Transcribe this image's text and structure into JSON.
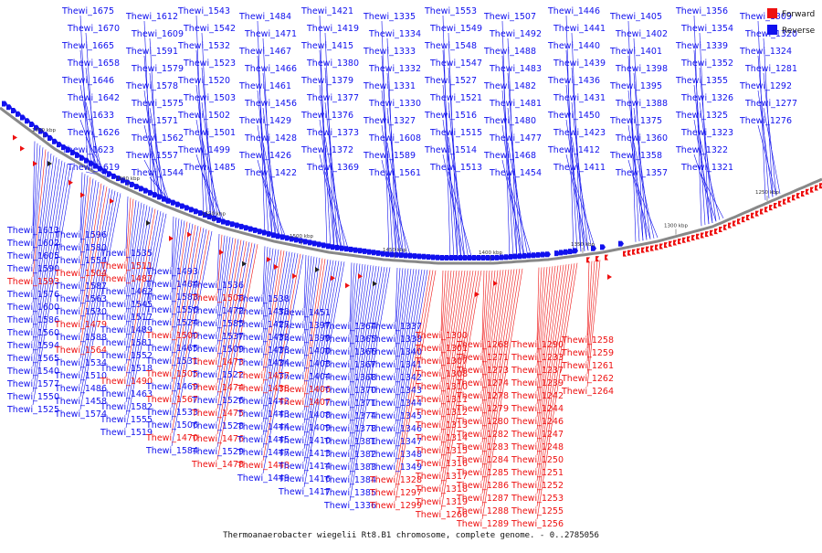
{
  "caption": "Thermoanaerobacter wiegelii Rt8.B1 chromosome, complete genome. - 0..2785056",
  "legend": {
    "items": [
      {
        "label": "Forward",
        "color": "#ee1111"
      },
      {
        "label": "Reverse",
        "color": "#1111ee"
      }
    ]
  },
  "colors": {
    "forward": "#ee1111",
    "reverse": "#1111ee",
    "backbone": "#888888"
  },
  "scale": {
    "unit": "kbp",
    "ticks": [
      1650,
      1600,
      1550,
      1500,
      1450,
      1400,
      1350,
      1300,
      1250
    ]
  },
  "outer_labels": [
    "Thewi_1675",
    "Thewi_1670",
    "Thewi_1665",
    "Thewi_1658",
    "Thewi_1646",
    "Thewi_1642",
    "Thewi_1633",
    "Thewi_1626",
    "Thewi_1623",
    "Thewi_1619",
    "Thewi_1612",
    "Thewi_1609",
    "Thewi_1591",
    "Thewi_1579",
    "Thewi_1578",
    "Thewi_1575",
    "Thewi_1571",
    "Thewi_1562",
    "Thewi_1557",
    "Thewi_1544",
    "Thewi_1543",
    "Thewi_1542",
    "Thewi_1532",
    "Thewi_1523",
    "Thewi_1520",
    "Thewi_1503",
    "Thewi_1502",
    "Thewi_1501",
    "Thewi_1499",
    "Thewi_1485",
    "Thewi_1484",
    "Thewi_1471",
    "Thewi_1467",
    "Thewi_1466",
    "Thewi_1461",
    "Thewi_1456",
    "Thewi_1429",
    "Thewi_1428",
    "Thewi_1426",
    "Thewi_1422",
    "Thewi_1421",
    "Thewi_1419",
    "Thewi_1415",
    "Thewi_1380",
    "Thewi_1379",
    "Thewi_1377",
    "Thewi_1376",
    "Thewi_1373",
    "Thewi_1372",
    "Thewi_1369",
    "Thewi_1335",
    "Thewi_1334",
    "Thewi_1333",
    "Thewi_1332",
    "Thewi_1331",
    "Thewi_1330",
    "Thewi_1327",
    "Thewi_1608",
    "Thewi_1589",
    "Thewi_1561",
    "Thewi_1553",
    "Thewi_1549",
    "Thewi_1548",
    "Thewi_1547",
    "Thewi_1527",
    "Thewi_1521",
    "Thewi_1516",
    "Thewi_1515",
    "Thewi_1514",
    "Thewi_1513",
    "Thewi_1507",
    "Thewi_1492",
    "Thewi_1488",
    "Thewi_1483",
    "Thewi_1482",
    "Thewi_1481",
    "Thewi_1480",
    "Thewi_1477",
    "Thewi_1468",
    "Thewi_1454",
    "Thewi_1446",
    "Thewi_1441",
    "Thewi_1440",
    "Thewi_1439",
    "Thewi_1436",
    "Thewi_1431",
    "Thewi_1450",
    "Thewi_1423",
    "Thewi_1412",
    "Thewi_1411",
    "Thewi_1405",
    "Thewi_1402",
    "Thewi_1401",
    "Thewi_1398",
    "Thewi_1395",
    "Thewi_1388",
    "Thewi_1375",
    "Thewi_1360",
    "Thewi_1358",
    "Thewi_1357",
    "Thewi_1356",
    "Thewi_1354",
    "Thewi_1339",
    "Thewi_1352",
    "Thewi_1355",
    "Thewi_1326",
    "Thewi_1325",
    "Thewi_1323",
    "Thewi_1322",
    "Thewi_1321",
    "Thewi_1309",
    "Thewi_1320",
    "Thewi_1324",
    "Thewi_1281",
    "Thewi_1292",
    "Thewi_1277",
    "Thewi_1276"
  ],
  "inner_labels": [
    {
      "name": "Thewi_1613",
      "strand": "reverse"
    },
    {
      "name": "Thewi_1602",
      "strand": "reverse"
    },
    {
      "name": "Thewi_1605",
      "strand": "reverse"
    },
    {
      "name": "Thewi_1590",
      "strand": "reverse"
    },
    {
      "name": "Thewi_1593",
      "strand": "forward"
    },
    {
      "name": "Thewi_1576",
      "strand": "reverse"
    },
    {
      "name": "Thewi_1600",
      "strand": "reverse"
    },
    {
      "name": "Thewi_1586",
      "strand": "reverse"
    },
    {
      "name": "Thewi_1560",
      "strand": "reverse"
    },
    {
      "name": "Thewi_1594",
      "strand": "reverse"
    },
    {
      "name": "Thewi_1565",
      "strand": "reverse"
    },
    {
      "name": "Thewi_1540",
      "strand": "reverse"
    },
    {
      "name": "Thewi_1577",
      "strand": "reverse"
    },
    {
      "name": "Thewi_1550",
      "strand": "reverse"
    },
    {
      "name": "Thewi_1525",
      "strand": "reverse"
    },
    {
      "name": "Thewi_1596",
      "strand": "reverse"
    },
    {
      "name": "Thewi_1580",
      "strand": "reverse"
    },
    {
      "name": "Thewi_1554",
      "strand": "reverse"
    },
    {
      "name": "Thewi_1504",
      "strand": "forward"
    },
    {
      "name": "Thewi_1587",
      "strand": "reverse"
    },
    {
      "name": "Thewi_1563",
      "strand": "reverse"
    },
    {
      "name": "Thewi_1530",
      "strand": "reverse"
    },
    {
      "name": "Thewi_1479",
      "strand": "forward"
    },
    {
      "name": "Thewi_1588",
      "strand": "reverse"
    },
    {
      "name": "Thewi_1564",
      "strand": "forward"
    },
    {
      "name": "Thewi_1534",
      "strand": "reverse"
    },
    {
      "name": "Thewi_1510",
      "strand": "reverse"
    },
    {
      "name": "Thewi_1486",
      "strand": "reverse"
    },
    {
      "name": "Thewi_1458",
      "strand": "reverse"
    },
    {
      "name": "Thewi_1574",
      "strand": "reverse"
    },
    {
      "name": "Thewi_1535",
      "strand": "reverse"
    },
    {
      "name": "Thewi_1511",
      "strand": "forward"
    },
    {
      "name": "Thewi_1487",
      "strand": "forward"
    },
    {
      "name": "Thewi_1462",
      "strand": "reverse"
    },
    {
      "name": "Thewi_1545",
      "strand": "reverse"
    },
    {
      "name": "Thewi_1517",
      "strand": "reverse"
    },
    {
      "name": "Thewi_1489",
      "strand": "reverse"
    },
    {
      "name": "Thewi_1581",
      "strand": "reverse"
    },
    {
      "name": "Thewi_1552",
      "strand": "reverse"
    },
    {
      "name": "Thewi_1518",
      "strand": "reverse"
    },
    {
      "name": "Thewi_1490",
      "strand": "forward"
    },
    {
      "name": "Thewi_1463",
      "strand": "reverse"
    },
    {
      "name": "Thewi_1582",
      "strand": "reverse"
    },
    {
      "name": "Thewi_1555",
      "strand": "reverse"
    },
    {
      "name": "Thewi_1519",
      "strand": "reverse"
    },
    {
      "name": "Thewi_1493",
      "strand": "reverse"
    },
    {
      "name": "Thewi_1464",
      "strand": "reverse"
    },
    {
      "name": "Thewi_1583",
      "strand": "reverse"
    },
    {
      "name": "Thewi_1556",
      "strand": "reverse"
    },
    {
      "name": "Thewi_1524",
      "strand": "reverse"
    },
    {
      "name": "Thewi_1500",
      "strand": "forward"
    },
    {
      "name": "Thewi_1465",
      "strand": "reverse"
    },
    {
      "name": "Thewi_1531",
      "strand": "reverse"
    },
    {
      "name": "Thewi_1505",
      "strand": "forward"
    },
    {
      "name": "Thewi_1469",
      "strand": "reverse"
    },
    {
      "name": "Thewi_1567",
      "strand": "forward"
    },
    {
      "name": "Thewi_1533",
      "strand": "reverse"
    },
    {
      "name": "Thewi_1506",
      "strand": "reverse"
    },
    {
      "name": "Thewi_1470",
      "strand": "forward"
    },
    {
      "name": "Thewi_1584",
      "strand": "reverse"
    },
    {
      "name": "Thewi_1536",
      "strand": "reverse"
    },
    {
      "name": "Thewi_1508",
      "strand": "forward"
    },
    {
      "name": "Thewi_1472",
      "strand": "reverse"
    },
    {
      "name": "Thewi_1585",
      "strand": "reverse"
    },
    {
      "name": "Thewi_1537",
      "strand": "reverse"
    },
    {
      "name": "Thewi_1509",
      "strand": "reverse"
    },
    {
      "name": "Thewi_1473",
      "strand": "forward"
    },
    {
      "name": "Thewi_1522",
      "strand": "reverse"
    },
    {
      "name": "Thewi_1474",
      "strand": "forward"
    },
    {
      "name": "Thewi_1526",
      "strand": "reverse"
    },
    {
      "name": "Thewi_1475",
      "strand": "forward"
    },
    {
      "name": "Thewi_1528",
      "strand": "reverse"
    },
    {
      "name": "Thewi_1476",
      "strand": "forward"
    },
    {
      "name": "Thewi_1529",
      "strand": "reverse"
    },
    {
      "name": "Thewi_1478",
      "strand": "forward"
    },
    {
      "name": "Thewi_1538",
      "strand": "reverse"
    },
    {
      "name": "Thewi_1430",
      "strand": "reverse"
    },
    {
      "name": "Thewi_1427",
      "strand": "reverse"
    },
    {
      "name": "Thewi_1432",
      "strand": "reverse"
    },
    {
      "name": "Thewi_1433",
      "strand": "reverse"
    },
    {
      "name": "Thewi_1434",
      "strand": "reverse"
    },
    {
      "name": "Thewi_1437",
      "strand": "forward"
    },
    {
      "name": "Thewi_1438",
      "strand": "forward"
    },
    {
      "name": "Thewi_1442",
      "strand": "reverse"
    },
    {
      "name": "Thewi_1443",
      "strand": "reverse"
    },
    {
      "name": "Thewi_1444",
      "strand": "reverse"
    },
    {
      "name": "Thewi_1445",
      "strand": "reverse"
    },
    {
      "name": "Thewi_1447",
      "strand": "reverse"
    },
    {
      "name": "Thewi_1448",
      "strand": "forward"
    },
    {
      "name": "Thewi_1449",
      "strand": "reverse"
    },
    {
      "name": "Thewi_1451",
      "strand": "reverse"
    },
    {
      "name": "Thewi_1397",
      "strand": "reverse"
    },
    {
      "name": "Thewi_1399",
      "strand": "reverse"
    },
    {
      "name": "Thewi_1400",
      "strand": "reverse"
    },
    {
      "name": "Thewi_1403",
      "strand": "reverse"
    },
    {
      "name": "Thewi_1404",
      "strand": "reverse"
    },
    {
      "name": "Thewi_1406",
      "strand": "forward"
    },
    {
      "name": "Thewi_1407",
      "strand": "forward"
    },
    {
      "name": "Thewi_1408",
      "strand": "reverse"
    },
    {
      "name": "Thewi_1409",
      "strand": "reverse"
    },
    {
      "name": "Thewi_1410",
      "strand": "reverse"
    },
    {
      "name": "Thewi_1413",
      "strand": "reverse"
    },
    {
      "name": "Thewi_1414",
      "strand": "reverse"
    },
    {
      "name": "Thewi_1416",
      "strand": "reverse"
    },
    {
      "name": "Thewi_1417",
      "strand": "reverse"
    },
    {
      "name": "Thewi_1364",
      "strand": "reverse"
    },
    {
      "name": "Thewi_1365",
      "strand": "reverse"
    },
    {
      "name": "Thewi_1366",
      "strand": "reverse"
    },
    {
      "name": "Thewi_1367",
      "strand": "reverse"
    },
    {
      "name": "Thewi_1368",
      "strand": "reverse"
    },
    {
      "name": "Thewi_1370",
      "strand": "reverse"
    },
    {
      "name": "Thewi_1371",
      "strand": "reverse"
    },
    {
      "name": "Thewi_1374",
      "strand": "reverse"
    },
    {
      "name": "Thewi_1378",
      "strand": "reverse"
    },
    {
      "name": "Thewi_1381",
      "strand": "reverse"
    },
    {
      "name": "Thewi_1382",
      "strand": "reverse"
    },
    {
      "name": "Thewi_1383",
      "strand": "reverse"
    },
    {
      "name": "Thewi_1384",
      "strand": "reverse"
    },
    {
      "name": "Thewi_1385",
      "strand": "reverse"
    },
    {
      "name": "Thewi_1336",
      "strand": "reverse"
    },
    {
      "name": "Thewi_1337",
      "strand": "reverse"
    },
    {
      "name": "Thewi_1338",
      "strand": "reverse"
    },
    {
      "name": "Thewi_1340",
      "strand": "reverse"
    },
    {
      "name": "Thewi_1341",
      "strand": "reverse"
    },
    {
      "name": "Thewi_1342",
      "strand": "reverse"
    },
    {
      "name": "Thewi_1343",
      "strand": "reverse"
    },
    {
      "name": "Thewi_1344",
      "strand": "reverse"
    },
    {
      "name": "Thewi_1345",
      "strand": "reverse"
    },
    {
      "name": "Thewi_1346",
      "strand": "reverse"
    },
    {
      "name": "Thewi_1347",
      "strand": "reverse"
    },
    {
      "name": "Thewi_1348",
      "strand": "reverse"
    },
    {
      "name": "Thewi_1349",
      "strand": "reverse"
    },
    {
      "name": "Thewi_1328",
      "strand": "forward"
    },
    {
      "name": "Thewi_1297",
      "strand": "forward"
    },
    {
      "name": "Thewi_1299",
      "strand": "forward"
    },
    {
      "name": "Thewi_1300",
      "strand": "forward"
    },
    {
      "name": "Thewi_1301",
      "strand": "forward"
    },
    {
      "name": "Thewi_1307",
      "strand": "forward"
    },
    {
      "name": "Thewi_1308",
      "strand": "forward"
    },
    {
      "name": "Thewi_1310",
      "strand": "forward"
    },
    {
      "name": "Thewi_1311",
      "strand": "forward"
    },
    {
      "name": "Thewi_1312",
      "strand": "forward"
    },
    {
      "name": "Thewi_1313",
      "strand": "forward"
    },
    {
      "name": "Thewi_1314",
      "strand": "forward"
    },
    {
      "name": "Thewi_1315",
      "strand": "forward"
    },
    {
      "name": "Thewi_1316",
      "strand": "forward"
    },
    {
      "name": "Thewi_1317",
      "strand": "forward"
    },
    {
      "name": "Thewi_1318",
      "strand": "forward"
    },
    {
      "name": "Thewi_1319",
      "strand": "forward"
    },
    {
      "name": "Thewi_1266",
      "strand": "forward"
    },
    {
      "name": "Thewi_1268",
      "strand": "forward"
    },
    {
      "name": "Thewi_1271",
      "strand": "forward"
    },
    {
      "name": "Thewi_1273",
      "strand": "forward"
    },
    {
      "name": "Thewi_1274",
      "strand": "forward"
    },
    {
      "name": "Thewi_1278",
      "strand": "forward"
    },
    {
      "name": "Thewi_1279",
      "strand": "forward"
    },
    {
      "name": "Thewi_1280",
      "strand": "forward"
    },
    {
      "name": "Thewi_1282",
      "strand": "forward"
    },
    {
      "name": "Thewi_1283",
      "strand": "forward"
    },
    {
      "name": "Thewi_1284",
      "strand": "forward"
    },
    {
      "name": "Thewi_1285",
      "strand": "forward"
    },
    {
      "name": "Thewi_1286",
      "strand": "forward"
    },
    {
      "name": "Thewi_1287",
      "strand": "forward"
    },
    {
      "name": "Thewi_1288",
      "strand": "forward"
    },
    {
      "name": "Thewi_1289",
      "strand": "forward"
    },
    {
      "name": "Thewi_1290",
      "strand": "forward"
    },
    {
      "name": "Thewi_1233",
      "strand": "forward"
    },
    {
      "name": "Thewi_1237",
      "strand": "forward"
    },
    {
      "name": "Thewi_1239",
      "strand": "forward"
    },
    {
      "name": "Thewi_1242",
      "strand": "forward"
    },
    {
      "name": "Thewi_1244",
      "strand": "forward"
    },
    {
      "name": "Thewi_1246",
      "strand": "forward"
    },
    {
      "name": "Thewi_1247",
      "strand": "forward"
    },
    {
      "name": "Thewi_1248",
      "strand": "forward"
    },
    {
      "name": "Thewi_1250",
      "strand": "forward"
    },
    {
      "name": "Thewi_1251",
      "strand": "forward"
    },
    {
      "name": "Thewi_1252",
      "strand": "forward"
    },
    {
      "name": "Thewi_1253",
      "strand": "forward"
    },
    {
      "name": "Thewi_1255",
      "strand": "forward"
    },
    {
      "name": "Thewi_1256",
      "strand": "forward"
    },
    {
      "name": "Thewi_1258",
      "strand": "forward"
    },
    {
      "name": "Thewi_1259",
      "strand": "forward"
    },
    {
      "name": "Thewi_1261",
      "strand": "forward"
    },
    {
      "name": "Thewi_1262",
      "strand": "forward"
    },
    {
      "name": "Thewi_1264",
      "strand": "forward"
    }
  ]
}
